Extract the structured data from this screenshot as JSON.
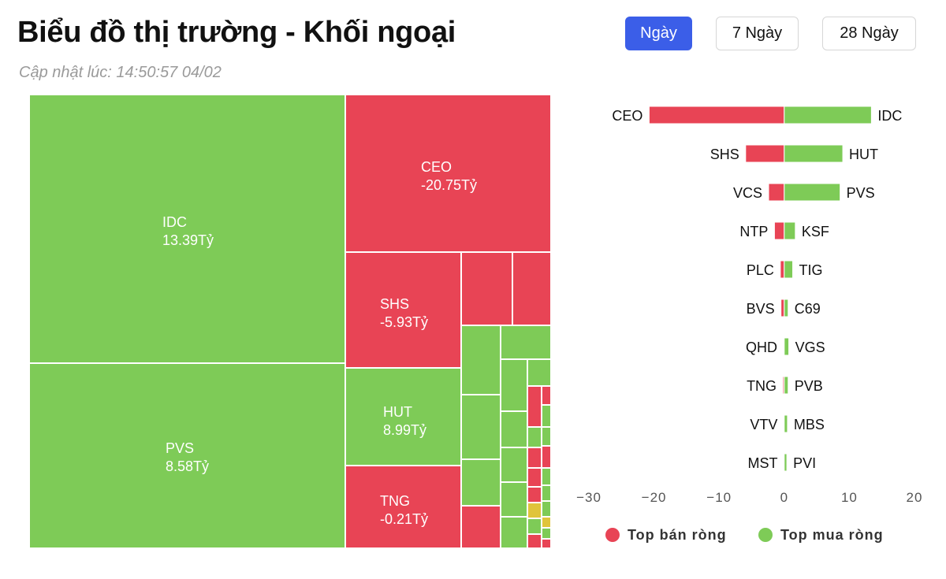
{
  "header": {
    "title": "Biểu đồ thị trường - Khối ngoại",
    "updated": "Cập nhật lúc: 14:50:57 04/02"
  },
  "range_buttons": [
    {
      "label": "Ngày",
      "active": true
    },
    {
      "label": "7 Ngày",
      "active": false
    },
    {
      "label": "28 Ngày",
      "active": false
    }
  ],
  "colors": {
    "sell": "#e84455",
    "buy": "#7ecb57",
    "neutral": "#e0c43b",
    "active_button": "#3b5ee8"
  },
  "chart_data": [
    {
      "type": "treemap",
      "tiles": [
        {
          "name": "IDC",
          "value": 13.39,
          "label": "13.39Tỷ",
          "side": "buy"
        },
        {
          "name": "PVS",
          "value": 8.58,
          "label": "8.58Tỷ",
          "side": "buy"
        },
        {
          "name": "CEO",
          "value": -20.75,
          "label": "-20.75Tỷ",
          "side": "sell"
        },
        {
          "name": "SHS",
          "value": -5.93,
          "label": "-5.93Tỷ",
          "side": "sell"
        },
        {
          "name": "HUT",
          "value": 8.99,
          "label": "8.99Tỷ",
          "side": "buy"
        },
        {
          "name": "TNG",
          "value": -0.21,
          "label": "-0.21Tỷ",
          "side": "sell"
        }
      ]
    },
    {
      "type": "bar",
      "orientation": "horizontal",
      "xlim": [
        -30,
        20
      ],
      "xticks": [
        "−30",
        "−20",
        "−10",
        "0",
        "10",
        "20"
      ],
      "grid": false,
      "legend_position": "bottom",
      "legend": [
        "Top bán ròng",
        "Top mua ròng"
      ],
      "rows": [
        {
          "sell": "CEO",
          "sell_value": -20.75,
          "buy": "IDC",
          "buy_value": 13.39
        },
        {
          "sell": "SHS",
          "sell_value": -5.93,
          "buy": "HUT",
          "buy_value": 8.99
        },
        {
          "sell": "VCS",
          "sell_value": -2.4,
          "buy": "PVS",
          "buy_value": 8.58
        },
        {
          "sell": "NTP",
          "sell_value": -1.5,
          "buy": "KSF",
          "buy_value": 1.7
        },
        {
          "sell": "PLC",
          "sell_value": -0.6,
          "buy": "TIG",
          "buy_value": 1.3
        },
        {
          "sell": "BVS",
          "sell_value": -0.5,
          "buy": "C69",
          "buy_value": 0.6
        },
        {
          "sell": "QHD",
          "sell_value": -0.1,
          "buy": "VGS",
          "buy_value": 0.7
        },
        {
          "sell": "TNG",
          "sell_value": -0.21,
          "buy": "PVB",
          "buy_value": 0.6
        },
        {
          "sell": "VTV",
          "sell_value": -0.05,
          "buy": "MBS",
          "buy_value": 0.5
        },
        {
          "sell": "MST",
          "sell_value": -0.03,
          "buy": "PVI",
          "buy_value": 0.4
        }
      ]
    }
  ]
}
